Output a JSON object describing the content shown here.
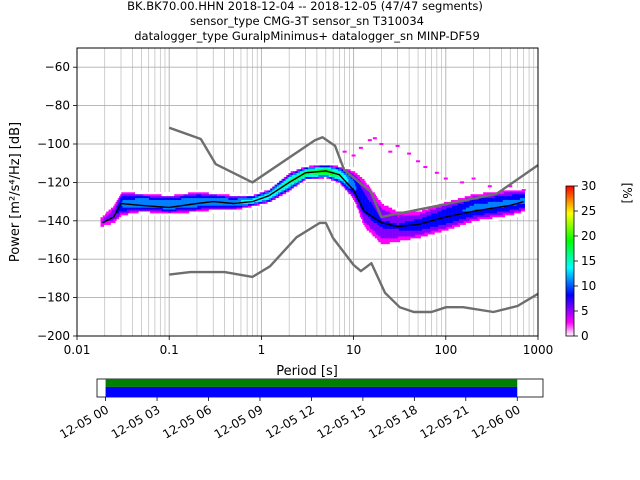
{
  "chart_data": [
    {
      "type": "heatmap",
      "title_lines": [
        "BK.BK70.00.HHN   2018-12-04 -- 2018-12-05  (47/47 segments)",
        "sensor_type CMG-3T sensor_sn T310034",
        "datalogger_type GuralpMinimus+ datalogger_sn MINP-DF59"
      ],
      "xlabel": "Period [s]",
      "ylabel": "Power [m²/s⁴/Hz] [dB]",
      "x_scale": "log",
      "xlim": [
        0.01,
        1000
      ],
      "ylim": [
        -200,
        -50
      ],
      "xticks": [
        0.01,
        0.1,
        1,
        10,
        100,
        1000
      ],
      "xtick_labels": [
        "0.01",
        "0.1",
        "1",
        "10",
        "100",
        "1000"
      ],
      "yticks": [
        -200,
        -180,
        -160,
        -140,
        -120,
        -100,
        -80,
        -60
      ],
      "ytick_labels": [
        "−200",
        "−180",
        "−160",
        "−140",
        "−120",
        "−100",
        "−80",
        "−60"
      ],
      "grid": true,
      "colorbar": {
        "label": "[%]",
        "min": 0,
        "max": 30,
        "ticks": [
          0,
          5,
          10,
          15,
          20,
          25,
          30
        ],
        "tick_labels": [
          "0",
          "5",
          "10",
          "15",
          "20",
          "25",
          "30"
        ],
        "colormap": [
          "#ffffff",
          "#ff00ff",
          "#8000ff",
          "#0000ff",
          "#0080ff",
          "#00ffff",
          "#00ff80",
          "#00ff00",
          "#80ff00",
          "#ffff00",
          "#ff8000",
          "#ff0000"
        ]
      },
      "series": [
        {
          "role": "mean-psd",
          "color": "#000000",
          "points": [
            [
              0.019,
              -141
            ],
            [
              0.025,
              -138
            ],
            [
              0.03,
              -131
            ],
            [
              0.05,
              -132
            ],
            [
              0.1,
              -133
            ],
            [
              0.2,
              -131
            ],
            [
              0.3,
              -130
            ],
            [
              0.5,
              -131
            ],
            [
              0.8,
              -130
            ],
            [
              1.2,
              -127
            ],
            [
              2,
              -120
            ],
            [
              3,
              -115
            ],
            [
              5,
              -114
            ],
            [
              7,
              -116
            ],
            [
              10,
              -124
            ],
            [
              13,
              -135
            ],
            [
              20,
              -141
            ],
            [
              30,
              -143
            ],
            [
              50,
              -142
            ],
            [
              100,
              -138
            ],
            [
              200,
              -135
            ],
            [
              500,
              -132
            ],
            [
              700,
              -130
            ]
          ]
        },
        {
          "role": "NHNM",
          "color": "#6e6e6e",
          "points": [
            [
              0.1,
              -91.5
            ],
            [
              0.22,
              -97.4
            ],
            [
              0.32,
              -110.5
            ],
            [
              0.8,
              -120
            ],
            [
              3.8,
              -98
            ],
            [
              4.6,
              -96.5
            ],
            [
              6.3,
              -101
            ],
            [
              7.9,
              -113.5
            ],
            [
              15.4,
              -125
            ],
            [
              20,
              -138
            ],
            [
              354.8,
              -126
            ],
            [
              1000,
              -111
            ]
          ]
        },
        {
          "role": "NLNM",
          "color": "#6e6e6e",
          "points": [
            [
              0.1,
              -168
            ],
            [
              0.17,
              -166.7
            ],
            [
              0.4,
              -166.7
            ],
            [
              0.8,
              -169.2
            ],
            [
              1.24,
              -163.7
            ],
            [
              2.4,
              -148.6
            ],
            [
              4.3,
              -141.1
            ],
            [
              5,
              -141.1
            ],
            [
              6,
              -149
            ],
            [
              10,
              -163
            ],
            [
              12,
              -166.2
            ],
            [
              15.6,
              -162.1
            ],
            [
              21.9,
              -177.5
            ],
            [
              31.6,
              -185
            ],
            [
              45,
              -187.5
            ],
            [
              70,
              -187.5
            ],
            [
              101,
              -185
            ],
            [
              154,
              -185
            ],
            [
              328,
              -187.5
            ],
            [
              600,
              -184.4
            ],
            [
              1000,
              -178
            ]
          ]
        }
      ],
      "density_cells": {
        "description": "probability density of PSD values per period bin",
        "bands": [
          [
            0.018,
            -144,
            -138,
            4
          ],
          [
            0.025,
            -142,
            -132,
            6
          ],
          [
            0.03,
            -138,
            -125,
            10
          ],
          [
            0.05,
            -136,
            -126,
            12
          ],
          [
            0.1,
            -137,
            -127,
            12
          ],
          [
            0.2,
            -136,
            -125,
            12
          ],
          [
            0.3,
            -135,
            -126,
            12
          ],
          [
            0.5,
            -135,
            -127,
            12
          ],
          [
            0.8,
            -133,
            -127,
            14
          ],
          [
            1.2,
            -131,
            -124,
            15
          ],
          [
            2,
            -125,
            -115,
            16
          ],
          [
            3,
            -119,
            -112,
            18
          ],
          [
            5,
            -118,
            -111,
            20
          ],
          [
            7,
            -121,
            -112,
            16
          ],
          [
            10,
            -130,
            -114,
            10
          ],
          [
            13,
            -145,
            -118,
            8
          ],
          [
            20,
            -154,
            -130,
            7
          ],
          [
            30,
            -152,
            -135,
            7
          ],
          [
            50,
            -150,
            -135,
            8
          ],
          [
            100,
            -146,
            -130,
            9
          ],
          [
            200,
            -141,
            -126,
            10
          ],
          [
            500,
            -138,
            -124,
            10
          ],
          [
            700,
            -136,
            -124,
            10
          ]
        ],
        "outliers": [
          [
            8,
            -104
          ],
          [
            10,
            -106
          ],
          [
            12,
            -102
          ],
          [
            15,
            -98
          ],
          [
            17,
            -97
          ],
          [
            20,
            -100
          ],
          [
            25,
            -104
          ],
          [
            30,
            -101
          ],
          [
            40,
            -105
          ],
          [
            50,
            -109
          ],
          [
            60,
            -112
          ],
          [
            80,
            -115
          ],
          [
            100,
            -118
          ],
          [
            150,
            -120
          ],
          [
            200,
            -118
          ],
          [
            300,
            -122
          ],
          [
            500,
            -122
          ],
          [
            700,
            -124
          ]
        ]
      }
    },
    {
      "type": "bar",
      "role": "data-coverage",
      "xtick_labels": [
        "12-05 00",
        "12-05 03",
        "12-05 06",
        "12-05 09",
        "12-05 12",
        "12-05 15",
        "12-05 18",
        "12-05 21",
        "12-06 00"
      ],
      "xlim_hours": [
        -0.5,
        25.5
      ],
      "covered_hours": [
        0,
        24
      ],
      "colors": {
        "top": "#008000",
        "bottom": "#0000ff"
      }
    }
  ]
}
